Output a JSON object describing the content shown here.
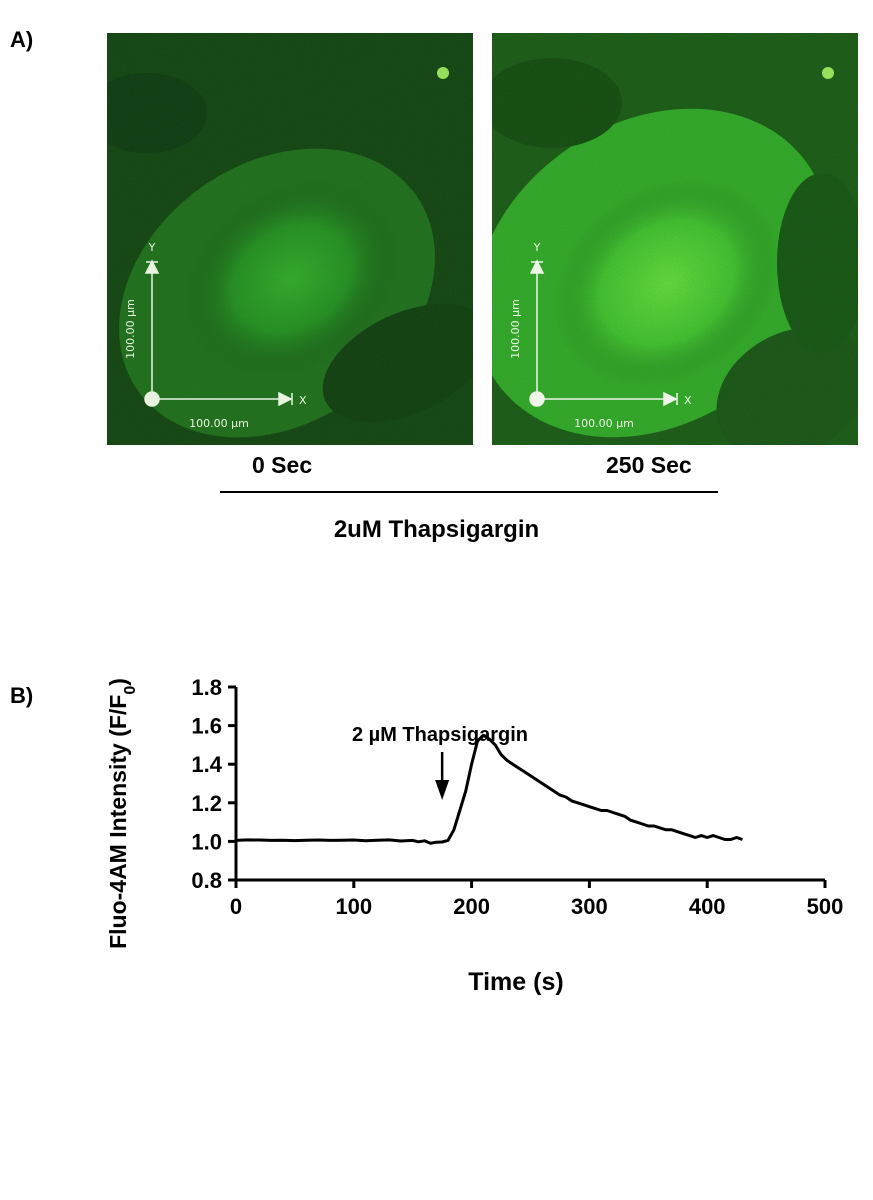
{
  "panel_a": {
    "label": "A)",
    "images": [
      {
        "time": "0 Sec",
        "scale_x": "100.00 µm",
        "scale_y": "100.00 µm",
        "axis_x": "X",
        "axis_y": "Y"
      },
      {
        "time": "250 Sec",
        "scale_x": "100.00 µm",
        "scale_y": "100.00 µm",
        "axis_x": "X",
        "axis_y": "Y"
      }
    ],
    "treatment": "2uM Thapsigargin"
  },
  "panel_b": {
    "label": "B)"
  },
  "chart_data": {
    "type": "line",
    "ylabel": "Fluo-4AM Intensity (F/F",
    "ylabel_sub": "0",
    "ylabel_close": ")",
    "xlabel": "Time (s)",
    "xlim": [
      0,
      500
    ],
    "ylim": [
      0.8,
      1.8
    ],
    "xticks": [
      0,
      100,
      200,
      300,
      400,
      500
    ],
    "yticks": [
      0.8,
      1.0,
      1.2,
      1.4,
      1.6,
      1.8
    ],
    "annotation": {
      "text": "2 µM Thapsigargin",
      "x": 175
    },
    "series": [
      {
        "x": [
          0,
          10,
          20,
          30,
          40,
          50,
          60,
          70,
          80,
          90,
          100,
          110,
          120,
          130,
          140,
          150,
          155,
          160,
          165,
          170,
          175,
          180,
          185,
          190,
          195,
          200,
          205,
          210,
          215,
          220,
          225,
          230,
          235,
          240,
          245,
          250,
          255,
          260,
          265,
          270,
          275,
          280,
          285,
          290,
          295,
          300,
          305,
          310,
          315,
          320,
          325,
          330,
          335,
          340,
          345,
          350,
          355,
          360,
          365,
          370,
          375,
          380,
          385,
          390,
          395,
          400,
          405,
          410,
          415,
          420,
          425,
          430
        ],
        "y": [
          1.005,
          1.008,
          1.007,
          1.005,
          1.006,
          1.004,
          1.006,
          1.007,
          1.005,
          1.006,
          1.007,
          1.003,
          1.006,
          1.008,
          1.002,
          1.005,
          0.998,
          1.003,
          0.99,
          0.996,
          0.997,
          1.005,
          1.06,
          1.16,
          1.26,
          1.4,
          1.52,
          1.55,
          1.53,
          1.5,
          1.45,
          1.42,
          1.4,
          1.38,
          1.36,
          1.34,
          1.32,
          1.3,
          1.28,
          1.26,
          1.24,
          1.23,
          1.21,
          1.2,
          1.19,
          1.18,
          1.17,
          1.16,
          1.16,
          1.15,
          1.14,
          1.13,
          1.11,
          1.1,
          1.09,
          1.08,
          1.08,
          1.07,
          1.06,
          1.06,
          1.05,
          1.04,
          1.03,
          1.02,
          1.03,
          1.02,
          1.03,
          1.02,
          1.01,
          1.01,
          1.02,
          1.01
        ]
      }
    ]
  }
}
